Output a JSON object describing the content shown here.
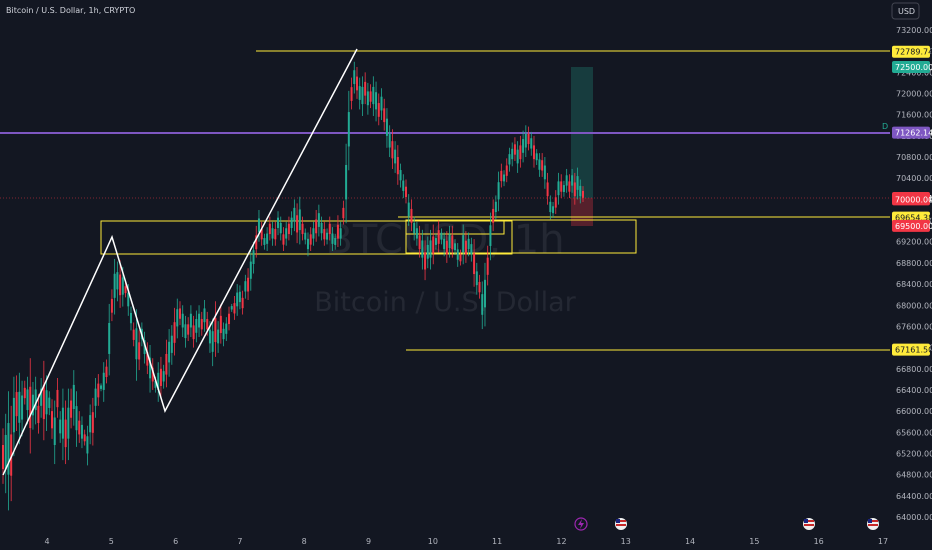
{
  "header": {
    "symbol_title": "Bitcoin / U.S. Dollar, 1h, CRYPTO",
    "currency": "USD"
  },
  "watermark": {
    "line1": "BTCUSD, 1h",
    "line2": "Bitcoin / U.S. Dollar"
  },
  "chart_data": {
    "type": "candlestick",
    "ylim": [
      63850,
      73500
    ],
    "y_ticks": [
      "73200.00",
      "72800.00",
      "72400.00",
      "72000.00",
      "71600.00",
      "71200.00",
      "70800.00",
      "70400.00",
      "70000.00",
      "69600.00",
      "69200.00",
      "68800.00",
      "68400.00",
      "68000.00",
      "67600.00",
      "67200.00",
      "66800.00",
      "66400.00",
      "66000.00",
      "65600.00",
      "65200.00",
      "64800.00",
      "64400.00",
      "64000.00"
    ],
    "x_ticks": [
      {
        "label": "4",
        "day": 4
      },
      {
        "label": "5",
        "day": 5
      },
      {
        "label": "6",
        "day": 6
      },
      {
        "label": "7",
        "day": 7
      },
      {
        "label": "8",
        "day": 8
      },
      {
        "label": "9",
        "day": 9
      },
      {
        "label": "10",
        "day": 10
      },
      {
        "label": "11",
        "day": 11
      },
      {
        "label": "12",
        "day": 12
      },
      {
        "label": "13",
        "day": 13
      },
      {
        "label": "14",
        "day": 14
      },
      {
        "label": "15",
        "day": 15
      },
      {
        "label": "16",
        "day": 16
      },
      {
        "label": "17",
        "day": 17
      }
    ],
    "price_levels": [
      {
        "value": 72789.74,
        "label": "72789.74",
        "color": "#ffeb3b",
        "text_color": "#131722"
      },
      {
        "value": 72500.0,
        "label": "72500.00",
        "color": "#22ab94",
        "text_color": "#ffffff"
      },
      {
        "value": 71262.14,
        "label": "71262.14",
        "color": "#7e57c2",
        "text_color": "#ffffff"
      },
      {
        "value": 70025.51,
        "label": "70025.51",
        "color": "#f23645",
        "text_color": "#ffffff"
      },
      {
        "value": 70000.0,
        "label": "70000.00",
        "color": "#f23645",
        "text_color": "#ffffff"
      },
      {
        "value": 69654.38,
        "label": "69654.38",
        "color": "#ffeb3b",
        "text_color": "#131722"
      },
      {
        "value": 69500.0,
        "label": "69500.00",
        "color": "#f23645",
        "text_color": "#ffffff"
      },
      {
        "value": 67161.5,
        "label": "67161.50",
        "color": "#ffeb3b",
        "text_color": "#131722"
      }
    ],
    "purple_line_marker": "D",
    "candles": [
      [
        64800,
        65500
      ],
      [
        64700,
        65700
      ],
      [
        64500,
        66000
      ],
      [
        64600,
        65800
      ],
      [
        65400,
        66400
      ],
      [
        65800,
        66500
      ],
      [
        65600,
        66500
      ],
      [
        65700,
        66400
      ],
      [
        66200,
        66500
      ],
      [
        65900,
        66500
      ],
      [
        65500,
        66700
      ],
      [
        65800,
        66400
      ],
      [
        65900,
        66500
      ],
      [
        65700,
        66200
      ],
      [
        66000,
        66500
      ],
      [
        65700,
        66700
      ],
      [
        65800,
        66500
      ],
      [
        66000,
        66300
      ],
      [
        65600,
        66100
      ],
      [
        65200,
        66000
      ],
      [
        66000,
        66500
      ],
      [
        65500,
        65900
      ],
      [
        65300,
        66200
      ],
      [
        65200,
        66000
      ],
      [
        65300,
        66200
      ],
      [
        65800,
        66300
      ],
      [
        65900,
        66600
      ],
      [
        65500,
        66200
      ],
      [
        65500,
        65900
      ],
      [
        65400,
        65800
      ],
      [
        65400,
        65600
      ],
      [
        65100,
        65600
      ],
      [
        65500,
        66000
      ],
      [
        65500,
        66100
      ],
      [
        66000,
        66500
      ],
      [
        66200,
        66600
      ],
      [
        66400,
        66500
      ],
      [
        66300,
        66800
      ],
      [
        66600,
        66900
      ],
      [
        66900,
        67800
      ],
      [
        67800,
        68200
      ],
      [
        68000,
        68700
      ],
      [
        68200,
        68700
      ],
      [
        68100,
        68700
      ],
      [
        68100,
        68600
      ],
      [
        68200,
        68400
      ],
      [
        67900,
        68300
      ],
      [
        67600,
        67900
      ],
      [
        67300,
        67600
      ],
      [
        66800,
        67700
      ],
      [
        66900,
        67400
      ],
      [
        67300,
        67600
      ],
      [
        67000,
        67400
      ],
      [
        66800,
        67200
      ],
      [
        66500,
        67100
      ],
      [
        66500,
        66900
      ],
      [
        66400,
        66600
      ],
      [
        66300,
        66800
      ],
      [
        66400,
        66900
      ],
      [
        66500,
        66800
      ],
      [
        66600,
        67200
      ],
      [
        66800,
        67400
      ],
      [
        67000,
        67500
      ],
      [
        67200,
        67800
      ],
      [
        67500,
        68000
      ],
      [
        67700,
        68000
      ],
      [
        67500,
        67900
      ],
      [
        67300,
        67700
      ],
      [
        67400,
        67700
      ],
      [
        67500,
        67900
      ],
      [
        67300,
        67700
      ],
      [
        67400,
        67800
      ],
      [
        67500,
        67900
      ],
      [
        67500,
        67800
      ],
      [
        67600,
        68000
      ],
      [
        67500,
        67800
      ],
      [
        67200,
        67600
      ],
      [
        67000,
        67600
      ],
      [
        67200,
        67900
      ],
      [
        67200,
        67600
      ],
      [
        67400,
        67900
      ],
      [
        67300,
        67600
      ],
      [
        67400,
        67700
      ],
      [
        67600,
        67900
      ],
      [
        67900,
        68000
      ],
      [
        67800,
        68100
      ],
      [
        67900,
        68300
      ],
      [
        68000,
        68300
      ],
      [
        67900,
        68200
      ],
      [
        68200,
        68500
      ],
      [
        68200,
        68600
      ],
      [
        68400,
        68900
      ],
      [
        68700,
        69100
      ],
      [
        69000,
        69400
      ],
      [
        69300,
        69700
      ],
      [
        69200,
        69500
      ],
      [
        69100,
        69300
      ],
      [
        69100,
        69400
      ],
      [
        69300,
        69600
      ],
      [
        69200,
        69500
      ],
      [
        69200,
        69500
      ],
      [
        69400,
        69700
      ],
      [
        69300,
        69600
      ],
      [
        69100,
        69400
      ],
      [
        69200,
        69500
      ],
      [
        69300,
        69600
      ],
      [
        69400,
        69700
      ],
      [
        69500,
        69900
      ],
      [
        69300,
        69800
      ],
      [
        69300,
        69900
      ],
      [
        69300,
        69600
      ],
      [
        69200,
        69400
      ],
      [
        69000,
        69300
      ],
      [
        69100,
        69400
      ],
      [
        69200,
        69500
      ],
      [
        69300,
        69700
      ],
      [
        69400,
        69800
      ],
      [
        69300,
        69600
      ],
      [
        69200,
        69500
      ],
      [
        69200,
        69400
      ],
      [
        69300,
        69600
      ],
      [
        69100,
        69400
      ],
      [
        69100,
        69300
      ],
      [
        69200,
        69600
      ],
      [
        69200,
        69500
      ],
      [
        69600,
        69900
      ],
      [
        69800,
        70800
      ],
      [
        70800,
        71800
      ],
      [
        71800,
        72200
      ],
      [
        72100,
        72500
      ],
      [
        72000,
        72400
      ],
      [
        71800,
        72200
      ],
      [
        71700,
        72200
      ],
      [
        71900,
        72300
      ],
      [
        71700,
        72100
      ],
      [
        71800,
        72100
      ],
      [
        71700,
        72200
      ],
      [
        71600,
        72100
      ],
      [
        71500,
        71900
      ],
      [
        71600,
        72000
      ],
      [
        71400,
        71800
      ],
      [
        71100,
        71600
      ],
      [
        70900,
        71300
      ],
      [
        70700,
        71200
      ],
      [
        70600,
        71000
      ],
      [
        70400,
        70900
      ],
      [
        70300,
        70600
      ],
      [
        70100,
        70400
      ],
      [
        70000,
        70300
      ],
      [
        69600,
        70000
      ],
      [
        69500,
        69900
      ],
      [
        69300,
        69600
      ],
      [
        69200,
        69500
      ],
      [
        69000,
        69400
      ],
      [
        68800,
        69300
      ],
      [
        68600,
        69100
      ],
      [
        68800,
        69200
      ],
      [
        68800,
        69300
      ],
      [
        68900,
        69400
      ],
      [
        69100,
        69300
      ],
      [
        69100,
        69500
      ],
      [
        69200,
        69400
      ],
      [
        69000,
        69300
      ],
      [
        68900,
        69300
      ],
      [
        69000,
        69400
      ],
      [
        69000,
        69400
      ],
      [
        69000,
        69200
      ],
      [
        68800,
        69100
      ],
      [
        68800,
        69000
      ],
      [
        68900,
        69400
      ],
      [
        68900,
        69300
      ],
      [
        69000,
        69300
      ],
      [
        68900,
        69200
      ],
      [
        68500,
        69100
      ],
      [
        68300,
        68700
      ],
      [
        68200,
        68500
      ],
      [
        67700,
        68300
      ],
      [
        67800,
        68600
      ],
      [
        68500,
        69000
      ],
      [
        69000,
        69600
      ],
      [
        69500,
        69900
      ],
      [
        69700,
        70000
      ],
      [
        69900,
        70400
      ],
      [
        70300,
        70600
      ],
      [
        70300,
        70500
      ],
      [
        70400,
        70700
      ],
      [
        70600,
        70900
      ],
      [
        70700,
        71000
      ],
      [
        70800,
        71100
      ],
      [
        70600,
        71000
      ],
      [
        70700,
        71100
      ],
      [
        70800,
        71200
      ],
      [
        70900,
        71300
      ],
      [
        71000,
        71300
      ],
      [
        70900,
        71200
      ],
      [
        70700,
        71100
      ],
      [
        70700,
        70900
      ],
      [
        70500,
        70800
      ],
      [
        70500,
        70800
      ],
      [
        70300,
        70700
      ],
      [
        70000,
        70400
      ],
      [
        69700,
        70000
      ],
      [
        69700,
        69900
      ],
      [
        69800,
        70100
      ],
      [
        70000,
        70400
      ],
      [
        70100,
        70400
      ],
      [
        70100,
        70300
      ],
      [
        70200,
        70500
      ],
      [
        70100,
        70400
      ],
      [
        70200,
        70500
      ],
      [
        70000,
        70400
      ],
      [
        70100,
        70500
      ],
      [
        70000,
        70300
      ],
      [
        70000,
        70200
      ]
    ]
  },
  "icons": {
    "flash": "lightning-icon",
    "flag": "us-flag-icon"
  }
}
